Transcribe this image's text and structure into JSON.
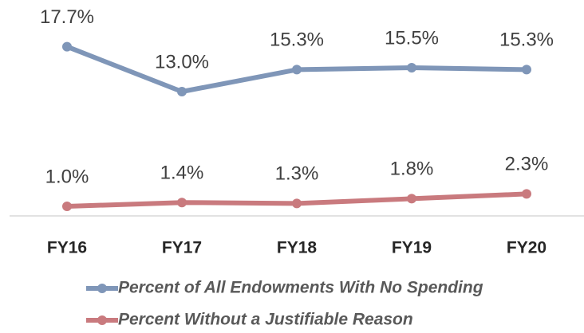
{
  "chart_data": {
    "type": "line",
    "categories": [
      "FY16",
      "FY17",
      "FY18",
      "FY19",
      "FY20"
    ],
    "series": [
      {
        "name": "Percent of All Endowments With No Spending",
        "color": "#7f96b8",
        "values": [
          17.7,
          13.0,
          15.3,
          15.5,
          15.3
        ],
        "value_labels": [
          "17.7%",
          "13.0%",
          "15.3%",
          "15.5%",
          "15.3%"
        ]
      },
      {
        "name": "Percent Without a Justifiable Reason",
        "color": "#c97a7e",
        "values": [
          1.0,
          1.4,
          1.3,
          1.8,
          2.3
        ],
        "value_labels": [
          "1.0%",
          "1.4%",
          "1.3%",
          "1.8%",
          "2.3%"
        ]
      }
    ],
    "ylim": [
      0,
      20
    ],
    "legend": "bottom"
  }
}
